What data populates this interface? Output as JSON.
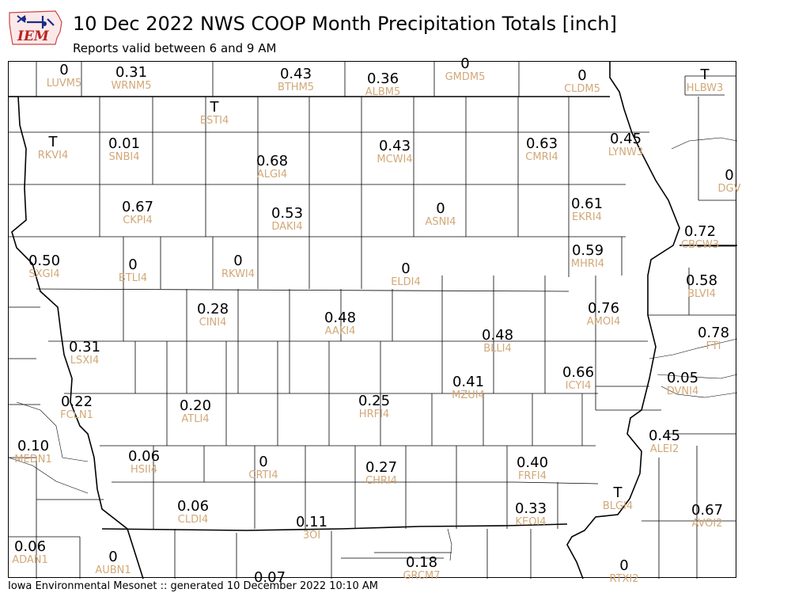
{
  "header": {
    "logo_text": "IEM",
    "title": "10 Dec 2022 NWS COOP Month Precipitation Totals [inch]",
    "subtitle": "Reports valid between 6 and 9 AM"
  },
  "footer": {
    "text": "Iowa Environmental Mesonet :: generated 10 December 2022 10:10 AM"
  },
  "colors": {
    "value": "#000000",
    "station_id": "#d2a878",
    "county_line": "#000000"
  },
  "stations": [
    {
      "id": "LUVM5",
      "value": "0"
    },
    {
      "id": "WRNM5",
      "value": "0.31"
    },
    {
      "id": "BTHM5",
      "value": "0.43"
    },
    {
      "id": "ALBM5",
      "value": "0.36"
    },
    {
      "id": "GMDM5",
      "value": "0"
    },
    {
      "id": "CLDM5",
      "value": "0"
    },
    {
      "id": "HLBW3",
      "value": "T"
    },
    {
      "id": "ESTI4",
      "value": "T"
    },
    {
      "id": "RKVI4",
      "value": "T"
    },
    {
      "id": "SNBI4",
      "value": "0.01"
    },
    {
      "id": "ALGI4",
      "value": "0.68"
    },
    {
      "id": "MCWI4",
      "value": "0.43"
    },
    {
      "id": "CMRI4",
      "value": "0.63"
    },
    {
      "id": "LYNW3",
      "value": "0.45"
    },
    {
      "id": "DGV",
      "value": "0"
    },
    {
      "id": "CKPI4",
      "value": "0.67"
    },
    {
      "id": "DAKI4",
      "value": "0.53"
    },
    {
      "id": "ASNI4",
      "value": "0"
    },
    {
      "id": "EKRI4",
      "value": "0.61"
    },
    {
      "id": "CBCW3",
      "value": "0.72"
    },
    {
      "id": "SXGI4",
      "value": "0.50"
    },
    {
      "id": "BTLI4",
      "value": "0"
    },
    {
      "id": "RKWI4",
      "value": "0"
    },
    {
      "id": "ELDI4",
      "value": "0"
    },
    {
      "id": "MHRI4",
      "value": "0.59"
    },
    {
      "id": "BLVI4",
      "value": "0.58"
    },
    {
      "id": "CINI4",
      "value": "0.28"
    },
    {
      "id": "AAKI4",
      "value": "0.48"
    },
    {
      "id": "AMOI4",
      "value": "0.76"
    },
    {
      "id": "FTI",
      "value": "0.78"
    },
    {
      "id": "BLLI4",
      "value": "0.48"
    },
    {
      "id": "LSXI4",
      "value": "0.31"
    },
    {
      "id": "ICYI4",
      "value": "0.66"
    },
    {
      "id": "MZUI4",
      "value": "0.41"
    },
    {
      "id": "DVNI4",
      "value": "0.05"
    },
    {
      "id": "FCLN1",
      "value": "0.22"
    },
    {
      "id": "ATLI4",
      "value": "0.20"
    },
    {
      "id": "HRFI4",
      "value": "0.25"
    },
    {
      "id": "ALEI2",
      "value": "0.45"
    },
    {
      "id": "MEDN1",
      "value": "0.10"
    },
    {
      "id": "HSII4",
      "value": "0.06"
    },
    {
      "id": "CRTI4",
      "value": "0"
    },
    {
      "id": "CHRI4",
      "value": "0.27"
    },
    {
      "id": "FRFI4",
      "value": "0.40"
    },
    {
      "id": "CLDI4",
      "value": "0.06"
    },
    {
      "id": "KEOI4",
      "value": "0.33"
    },
    {
      "id": "BLGI4",
      "value": "T"
    },
    {
      "id": "AVOI2",
      "value": "0.67"
    },
    {
      "id": "3OI",
      "value": "0.11"
    },
    {
      "id": "ADAN1",
      "value": "0.06"
    },
    {
      "id": "AUBN1",
      "value": "0"
    },
    {
      "id": "GRCM7",
      "value": "0.18"
    },
    {
      "id": "RTXI2",
      "value": "0"
    },
    {
      "id": "",
      "value": "0.07"
    }
  ]
}
